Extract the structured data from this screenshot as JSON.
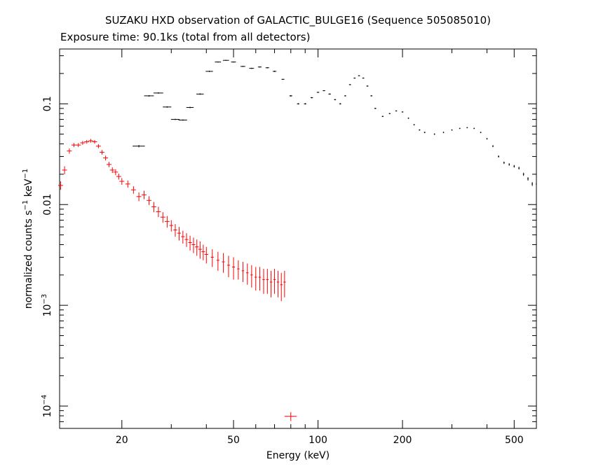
{
  "chart_data": {
    "type": "scatter",
    "title": "SUZAKU HXD observation of GALACTIC_BULGE16 (Sequence 505085010)",
    "subtitle": "Exposure time: 90.1ks (total from all detectors)",
    "xlabel": "Energy (keV)",
    "ylabel_prefix": "normalized counts s",
    "ylabel_exp1": "−1",
    "ylabel_mid": " keV",
    "ylabel_exp2": "−1",
    "xscale": "log",
    "yscale": "log",
    "xlim": [
      12,
      600
    ],
    "ylim": [
      6e-05,
      0.35
    ],
    "x_ticks": [
      {
        "value": 20,
        "label": "20"
      },
      {
        "value": 50,
        "label": "50"
      },
      {
        "value": 100,
        "label": "100"
      },
      {
        "value": 200,
        "label": "200"
      },
      {
        "value": 500,
        "label": "500"
      }
    ],
    "y_ticks": [
      {
        "value": 0.0001,
        "base": "10",
        "exp": "−4"
      },
      {
        "value": 0.001,
        "base": "10",
        "exp": "−3"
      },
      {
        "value": 0.01,
        "base": "0.01",
        "exp": ""
      },
      {
        "value": 0.1,
        "base": "0.1",
        "exp": ""
      }
    ],
    "grid": false,
    "series": [
      {
        "color": "#ff0000",
        "x": [
          12.1,
          12.5,
          13.0,
          13.5,
          14.0,
          14.5,
          15.0,
          15.5,
          16.0,
          16.5,
          17.0,
          17.5,
          18.0,
          18.5,
          19.0,
          19.5,
          20.0,
          21.0,
          22.0,
          23.0,
          24.0,
          25.0,
          26.0,
          27.0,
          28.0,
          29.0,
          30.0,
          31.0,
          32.0,
          33.0,
          34.0,
          35.0,
          36.0,
          37.0,
          38.0,
          39.0,
          40.0,
          42.0,
          44.0,
          46.0,
          48.0,
          50.0,
          52.0,
          54.0,
          56.0,
          58.0,
          60.0,
          62.0,
          64.0,
          66.0,
          68.0,
          70.0,
          72.0,
          74.0,
          76.0,
          80.0
        ],
        "y": [
          0.0155,
          0.022,
          0.034,
          0.039,
          0.039,
          0.041,
          0.042,
          0.043,
          0.042,
          0.038,
          0.033,
          0.029,
          0.025,
          0.022,
          0.021,
          0.019,
          0.017,
          0.016,
          0.014,
          0.012,
          0.0125,
          0.011,
          0.0095,
          0.0085,
          0.0075,
          0.0068,
          0.0062,
          0.0056,
          0.0052,
          0.0048,
          0.0045,
          0.0042,
          0.004,
          0.0038,
          0.0036,
          0.0034,
          0.0032,
          0.003,
          0.0028,
          0.0027,
          0.0025,
          0.0024,
          0.0023,
          0.0022,
          0.0021,
          0.002,
          0.0019,
          0.0019,
          0.0018,
          0.0018,
          0.0017,
          0.0018,
          0.0017,
          0.0016,
          0.0017,
          7.9e-05
        ],
        "y_err": [
          0.0015,
          0.002,
          0.002,
          0.0018,
          0.0018,
          0.0018,
          0.0018,
          0.0018,
          0.0018,
          0.0018,
          0.0017,
          0.0016,
          0.0015,
          0.0014,
          0.0014,
          0.0013,
          0.0013,
          0.0013,
          0.0012,
          0.0012,
          0.0012,
          0.0011,
          0.0011,
          0.001,
          0.0009,
          0.0009,
          0.0008,
          0.0008,
          0.0008,
          0.0007,
          0.0007,
          0.0007,
          0.0007,
          0.0007,
          0.0007,
          0.0006,
          0.0006,
          0.0006,
          0.0006,
          0.0006,
          0.0006,
          0.0006,
          0.0005,
          0.0005,
          0.0005,
          0.0005,
          0.0005,
          0.0005,
          0.0005,
          0.0005,
          0.0005,
          0.0005,
          0.0005,
          0.0005,
          0.0005,
          8e-06
        ],
        "x_err_frac": [
          0.02,
          0.02,
          0.02,
          0.02,
          0.02,
          0.02,
          0.02,
          0.02,
          0.02,
          0.02,
          0.02,
          0.02,
          0.02,
          0.02,
          0.02,
          0.02,
          0.02,
          0.02,
          0.02,
          0.02,
          0.02,
          0.02,
          0.02,
          0.02,
          0.02,
          0.02,
          0.015,
          0.015,
          0.015,
          0.015,
          0.015,
          0.015,
          0.015,
          0.015,
          0.015,
          0.015,
          0.015,
          0.012,
          0.012,
          0.012,
          0.012,
          0.012,
          0.01,
          0.01,
          0.01,
          0.01,
          0.01,
          0.01,
          0.01,
          0.01,
          0.01,
          0.01,
          0.01,
          0.01,
          0.01,
          0.05
        ]
      },
      {
        "color": "#000000",
        "x": [
          23,
          25,
          27,
          29,
          31,
          33,
          35,
          38,
          41,
          44,
          47,
          50,
          54,
          58,
          62,
          66,
          70,
          75,
          80,
          85,
          90,
          95,
          100,
          105,
          110,
          115,
          120,
          125,
          130,
          135,
          140,
          145,
          150,
          155,
          160,
          170,
          180,
          190,
          200,
          210,
          220,
          230,
          240,
          260,
          280,
          300,
          320,
          340,
          360,
          380,
          400,
          420,
          440,
          460,
          480,
          500,
          520,
          540,
          560,
          580,
          600
        ],
        "y": [
          0.038,
          0.12,
          0.128,
          0.093,
          0.07,
          0.069,
          0.092,
          0.125,
          0.21,
          0.26,
          0.27,
          0.26,
          0.235,
          0.225,
          0.232,
          0.228,
          0.21,
          0.175,
          0.12,
          0.1,
          0.1,
          0.115,
          0.13,
          0.135,
          0.125,
          0.11,
          0.1,
          0.12,
          0.155,
          0.18,
          0.19,
          0.18,
          0.15,
          0.12,
          0.09,
          0.075,
          0.08,
          0.085,
          0.083,
          0.072,
          0.062,
          0.055,
          0.052,
          0.05,
          0.052,
          0.055,
          0.057,
          0.058,
          0.057,
          0.052,
          0.045,
          0.038,
          0.03,
          0.026,
          0.025,
          0.024,
          0.023,
          0.02,
          0.018,
          0.016,
          0.016
        ],
        "y_err": [
          0.001,
          0.002,
          0.002,
          0.0015,
          0.001,
          0.001,
          0.0015,
          0.002,
          0.003,
          0.003,
          0.003,
          0.003,
          0.003,
          0.003,
          0.003,
          0.003,
          0.003,
          0.002,
          0.002,
          0.0015,
          0.0015,
          0.0015,
          0.0015,
          0.0015,
          0.0015,
          0.0015,
          0.0015,
          0.0015,
          0.002,
          0.002,
          0.002,
          0.002,
          0.002,
          0.0015,
          0.0012,
          0.001,
          0.001,
          0.001,
          0.001,
          0.001,
          0.0008,
          0.0008,
          0.0008,
          0.0008,
          0.0008,
          0.0008,
          0.0008,
          0.0008,
          0.0008,
          0.0008,
          0.0008,
          0.0008,
          0.0007,
          0.0007,
          0.0007,
          0.0007,
          0.0007,
          0.0007,
          0.0007,
          0.0007,
          0.0007
        ],
        "x_err_frac": [
          0.05,
          0.04,
          0.04,
          0.035,
          0.035,
          0.035,
          0.03,
          0.03,
          0.03,
          0.025,
          0.025,
          0.02,
          0.02,
          0.02,
          0.015,
          0.015,
          0.015,
          0.012,
          0.012,
          0.01,
          0.01,
          0.01,
          0.01,
          0.01,
          0.01,
          0.008,
          0.008,
          0.008,
          0.008,
          0.008,
          0.008,
          0.008,
          0.008,
          0.008,
          0.008,
          0.007,
          0.007,
          0.007,
          0.007,
          0.006,
          0.006,
          0.006,
          0.006,
          0.005,
          0.005,
          0.005,
          0.005,
          0.005,
          0.005,
          0.005,
          0.005,
          0.005,
          0.005,
          0.005,
          0.005,
          0.005,
          0.005,
          0.005,
          0.005,
          0.005,
          0.005
        ]
      }
    ]
  }
}
